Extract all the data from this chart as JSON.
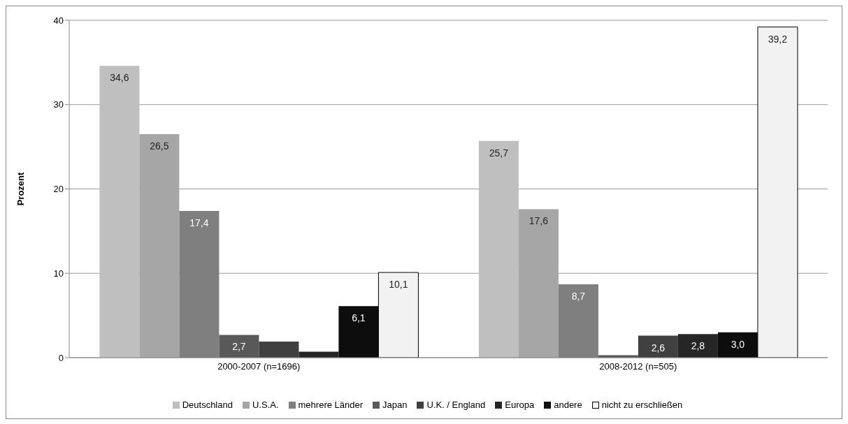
{
  "chart_data": {
    "type": "bar",
    "ylabel": "Prozent",
    "categories": [
      "2000-2007 (n=1696)",
      "2008-2012 (n=505)"
    ],
    "ylim": [
      0,
      40
    ],
    "yticks": [
      0,
      10,
      20,
      30,
      40
    ],
    "grid": "y",
    "legend": "bottom",
    "series": [
      {
        "name": "Deutschland",
        "color": "#bfbfbf",
        "values": [
          34.6,
          25.7
        ],
        "value_labels": [
          "34,6",
          "25,7"
        ]
      },
      {
        "name": "U.S.A.",
        "color": "#a6a6a6",
        "values": [
          26.5,
          17.6
        ],
        "value_labels": [
          "26,5",
          "17,6"
        ]
      },
      {
        "name": "mehrere Länder",
        "color": "#7f7f7f",
        "values": [
          17.4,
          8.7
        ],
        "value_labels": [
          "17,4",
          "8,7"
        ]
      },
      {
        "name": "Japan",
        "color": "#595959",
        "values": [
          2.7,
          0.3
        ],
        "value_labels": [
          "2,7",
          null
        ]
      },
      {
        "name": "U.K. / England",
        "color": "#404040",
        "values": [
          1.9,
          2.6
        ],
        "value_labels": [
          null,
          "2,6"
        ]
      },
      {
        "name": "Europa",
        "color": "#262626",
        "values": [
          0.7,
          2.8
        ],
        "value_labels": [
          null,
          "2,8"
        ]
      },
      {
        "name": "andere",
        "color": "#0d0d0d",
        "values": [
          6.1,
          3.0
        ],
        "value_labels": [
          "6,1",
          "3,0"
        ]
      },
      {
        "name": "nicht zu erschließen",
        "color": "#f2f2f2",
        "values": [
          10.1,
          39.2
        ],
        "value_labels": [
          "10,1",
          "39,2"
        ]
      }
    ]
  }
}
